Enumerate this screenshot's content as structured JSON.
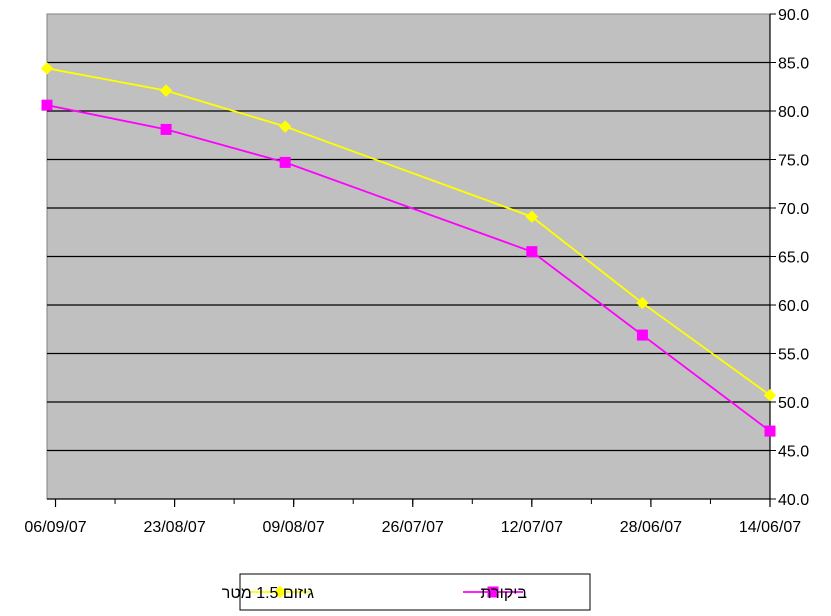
{
  "chart_data": {
    "type": "line",
    "title": "",
    "xlabel": "",
    "ylabel": "",
    "x_axis_orientation": "reversed (dates increase right to left)",
    "y_axis_position": "right",
    "x_ticks": [
      "06/09/07",
      "23/08/07",
      "09/08/07",
      "26/07/07",
      "12/07/07",
      "28/06/07",
      "14/06/07"
    ],
    "x_range": [
      "14/06/07",
      "07/09/07"
    ],
    "ylim": [
      40.0,
      90.0
    ],
    "y_ticks": [
      "40.0",
      "45.0",
      "50.0",
      "55.0",
      "60.0",
      "65.0",
      "70.0",
      "75.0",
      "80.0",
      "85.0",
      "90.0"
    ],
    "grid": "horizontal major gridlines",
    "plot_background": "#c0c0c0",
    "legend_position": "bottom-center",
    "series": [
      {
        "name": "גיזום 1.5 מטר",
        "color": "#ffff00",
        "marker": "diamond",
        "points": [
          {
            "x": "07/09/07",
            "y": 84.4
          },
          {
            "x": "24/08/07",
            "y": 82.1
          },
          {
            "x": "10/08/07",
            "y": 78.4
          },
          {
            "x": "12/07/07",
            "y": 69.1
          },
          {
            "x": "29/06/07",
            "y": 60.2
          },
          {
            "x": "14/06/07",
            "y": 50.7
          }
        ]
      },
      {
        "name": "ביקורת",
        "color": "#ff00ff",
        "marker": "square",
        "points": [
          {
            "x": "07/09/07",
            "y": 80.6
          },
          {
            "x": "24/08/07",
            "y": 78.1
          },
          {
            "x": "10/08/07",
            "y": 74.7
          },
          {
            "x": "12/07/07",
            "y": 65.5
          },
          {
            "x": "29/06/07",
            "y": 56.9
          },
          {
            "x": "14/06/07",
            "y": 47.0
          }
        ]
      }
    ]
  }
}
